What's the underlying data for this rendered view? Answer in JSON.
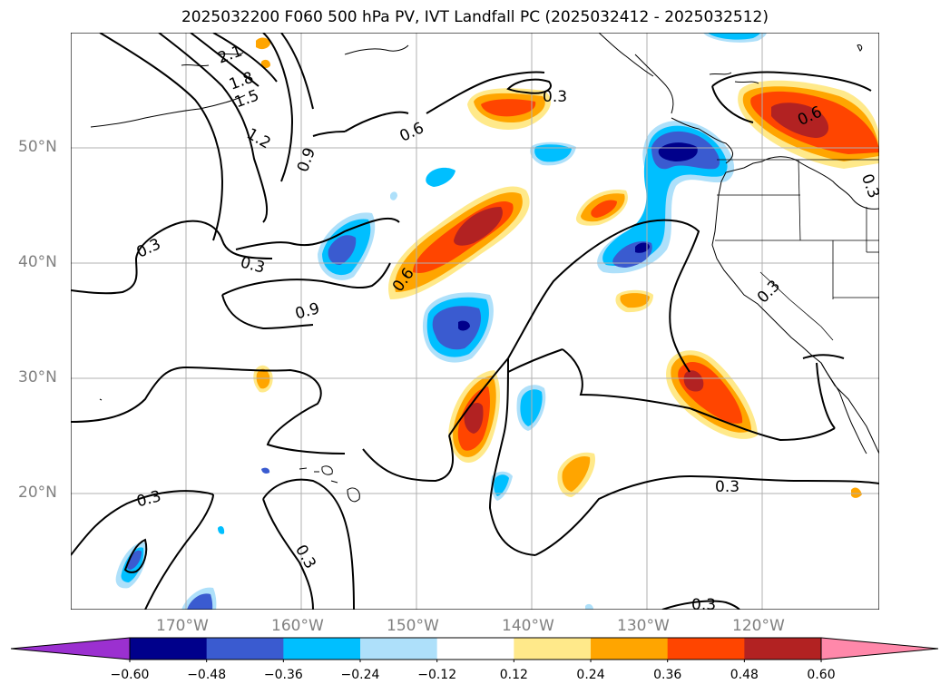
{
  "title": "2025032200 F060 500 hPa PV, IVT Landfall PC (2025032412 - 2025032512)",
  "lat_labels": [
    "50°N",
    "40°N",
    "30°N",
    "20°N"
  ],
  "lon_labels": [
    "170°W",
    "160°W",
    "150°W",
    "140°W",
    "130°W",
    "120°W"
  ],
  "contour_labels": [
    "2.1",
    "1.8",
    "1.5",
    "1.2",
    "0.9",
    "0.6",
    "0.3",
    "0.3",
    "0.9",
    "0.6",
    "0.3",
    "0.6",
    "0.3",
    "0.3",
    "0.3",
    "0.3",
    "0.3",
    "0.3"
  ],
  "colorbar": {
    "ticks": [
      "−0.60",
      "−0.48",
      "−0.36",
      "−0.24",
      "−0.12",
      "0.12",
      "0.24",
      "0.36",
      "0.48",
      "0.60"
    ],
    "colors": [
      "#9b30d0",
      "#00008b",
      "#3a5bd0",
      "#00bfff",
      "#aee0fa",
      "#ffffff",
      "#ffe98a",
      "#ffa500",
      "#ff4500",
      "#b22222",
      "#ff88aa"
    ]
  },
  "palette": {
    "deep_blue": "#00008b",
    "blue": "#3a5bd0",
    "cyan": "#00bfff",
    "light_blue": "#aee0fa",
    "yellow": "#ffe98a",
    "orange": "#ffa500",
    "red_orange": "#ff4500",
    "dark_red": "#b22222"
  }
}
